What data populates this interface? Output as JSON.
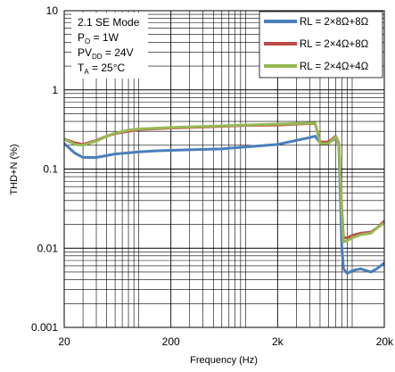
{
  "chart_data": {
    "type": "line",
    "title": "",
    "xlabel": "Frequency (Hz)",
    "ylabel": "THD+N (%)",
    "x_scale": "log",
    "y_scale": "log",
    "xlim": [
      20,
      20000
    ],
    "ylim": [
      0.001,
      10
    ],
    "x_ticks": [
      {
        "value": 20,
        "label": "20"
      },
      {
        "value": 200,
        "label": "200"
      },
      {
        "value": 2000,
        "label": "2k"
      },
      {
        "value": 20000,
        "label": "20k"
      }
    ],
    "y_ticks": [
      {
        "value": 10,
        "label": "10"
      },
      {
        "value": 1,
        "label": "1"
      },
      {
        "value": 0.1,
        "label": "0.1"
      },
      {
        "value": 0.01,
        "label": "0.01"
      },
      {
        "value": 0.001,
        "label": "0.001"
      }
    ],
    "grid": true,
    "legend_position": "top-right",
    "annotation": {
      "line1": "2.1 SE Mode",
      "line2_main": "P",
      "line2_sub": "O",
      "line2_rest": " = 1W",
      "line3_main": "PV",
      "line3_sub": "DD",
      "line3_rest": " = 24V",
      "line4_main": "T",
      "line4_sub": "A",
      "line4_rest": " = 25°C"
    },
    "series": [
      {
        "name": "RL = 2×8Ω+8Ω",
        "color": "#4a7ebb",
        "points": [
          [
            20,
            0.21
          ],
          [
            25,
            0.16
          ],
          [
            30,
            0.14
          ],
          [
            40,
            0.14
          ],
          [
            60,
            0.155
          ],
          [
            100,
            0.165
          ],
          [
            150,
            0.17
          ],
          [
            300,
            0.175
          ],
          [
            600,
            0.18
          ],
          [
            1000,
            0.19
          ],
          [
            2000,
            0.205
          ],
          [
            3000,
            0.23
          ],
          [
            4000,
            0.25
          ],
          [
            4500,
            0.26
          ],
          [
            5000,
            0.215
          ],
          [
            6000,
            0.22
          ],
          [
            7000,
            0.24
          ],
          [
            7500,
            0.2
          ],
          [
            8000,
            0.01
          ],
          [
            8300,
            0.0055
          ],
          [
            9000,
            0.0048
          ],
          [
            10000,
            0.0052
          ],
          [
            12000,
            0.0055
          ],
          [
            15000,
            0.005
          ],
          [
            17000,
            0.0055
          ],
          [
            20000,
            0.0065
          ]
        ]
      },
      {
        "name": "RL = 2×4Ω+8Ω",
        "color": "#be4b48",
        "points": [
          [
            20,
            0.24
          ],
          [
            25,
            0.215
          ],
          [
            30,
            0.205
          ],
          [
            40,
            0.23
          ],
          [
            50,
            0.26
          ],
          [
            60,
            0.28
          ],
          [
            80,
            0.3
          ],
          [
            100,
            0.315
          ],
          [
            200,
            0.33
          ],
          [
            400,
            0.34
          ],
          [
            1000,
            0.355
          ],
          [
            2000,
            0.36
          ],
          [
            3000,
            0.37
          ],
          [
            4000,
            0.375
          ],
          [
            4500,
            0.375
          ],
          [
            5000,
            0.22
          ],
          [
            6000,
            0.22
          ],
          [
            7000,
            0.26
          ],
          [
            7500,
            0.21
          ],
          [
            8000,
            0.03
          ],
          [
            8300,
            0.0135
          ],
          [
            9000,
            0.0135
          ],
          [
            10000,
            0.0145
          ],
          [
            12000,
            0.0155
          ],
          [
            15000,
            0.016
          ],
          [
            17000,
            0.018
          ],
          [
            20000,
            0.022
          ]
        ]
      },
      {
        "name": "RL = 2×4Ω+4Ω",
        "color": "#98b954",
        "points": [
          [
            20,
            0.24
          ],
          [
            25,
            0.205
          ],
          [
            30,
            0.2
          ],
          [
            40,
            0.225
          ],
          [
            50,
            0.26
          ],
          [
            60,
            0.285
          ],
          [
            80,
            0.31
          ],
          [
            100,
            0.32
          ],
          [
            200,
            0.335
          ],
          [
            400,
            0.345
          ],
          [
            1000,
            0.36
          ],
          [
            2000,
            0.37
          ],
          [
            3000,
            0.375
          ],
          [
            4000,
            0.38
          ],
          [
            4500,
            0.38
          ],
          [
            5000,
            0.21
          ],
          [
            6000,
            0.21
          ],
          [
            7000,
            0.255
          ],
          [
            7500,
            0.2
          ],
          [
            8000,
            0.025
          ],
          [
            8300,
            0.012
          ],
          [
            9000,
            0.0125
          ],
          [
            10000,
            0.0135
          ],
          [
            12000,
            0.0148
          ],
          [
            15000,
            0.0155
          ],
          [
            17000,
            0.018
          ],
          [
            20000,
            0.021
          ]
        ]
      }
    ]
  }
}
